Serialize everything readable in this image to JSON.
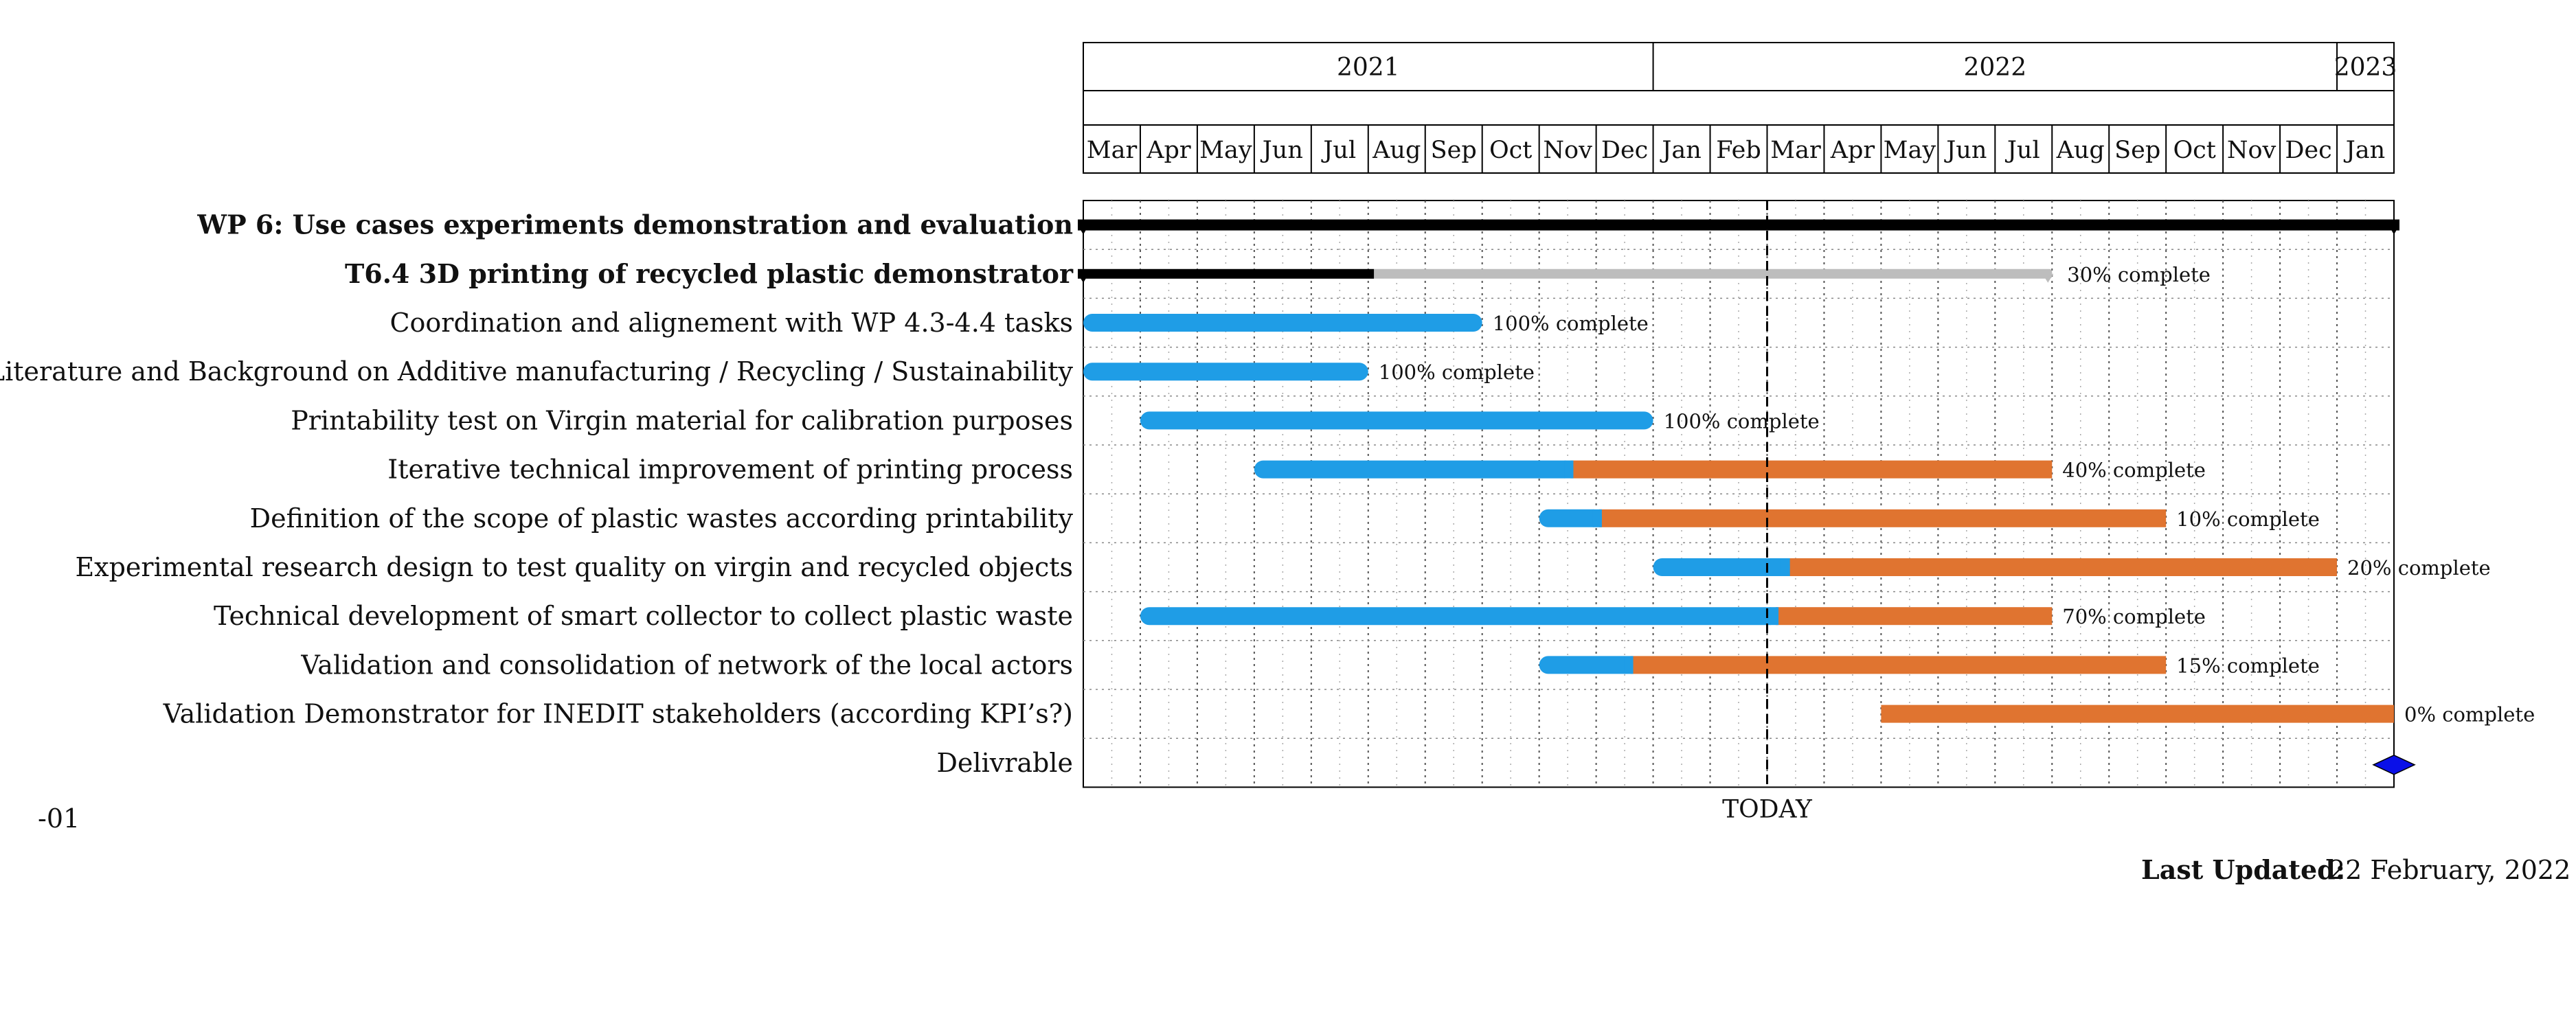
{
  "chart_data": {
    "type": "gantt",
    "years": [
      {
        "label": "2021",
        "start": "2021-03-01",
        "end": "2022-01-01"
      },
      {
        "label": "2022",
        "start": "2022-01-01",
        "end": "2023-01-01"
      },
      {
        "label": "2023",
        "start": "2023-01-01",
        "end": "2023-02-01"
      }
    ],
    "months": [
      "Mar",
      "Apr",
      "May",
      "Jun",
      "Jul",
      "Aug",
      "Sep",
      "Oct",
      "Nov",
      "Dec",
      "Jan",
      "Feb",
      "Mar",
      "Apr",
      "May",
      "Jun",
      "Jul",
      "Aug",
      "Sep",
      "Oct",
      "Nov",
      "Dec",
      "Jan"
    ],
    "axis_start": "2021-03-01",
    "axis_end": "2023-02-01",
    "today": "2022-03-01",
    "today_label": "TODAY",
    "rows": [
      {
        "label": "WP 6: Use cases experiments demonstration and evaluation",
        "kind": "wp",
        "start": "2021-03-01",
        "end": "2023-02-01",
        "color": "#999999"
      },
      {
        "label": "T6.4 3D printing of recycled plastic demonstrator",
        "kind": "task",
        "start": "2021-03-01",
        "end": "2022-08-01",
        "progress": 0.3,
        "progress_label": "30% complete",
        "color": "#1515dd"
      },
      {
        "label": "Coordination and alignement with WP 4.3-4.4 tasks",
        "kind": "bar",
        "start": "2021-03-01",
        "end": "2021-10-01",
        "progress": 1.0,
        "progress_label": "100% complete"
      },
      {
        "label": "Literature and Background on Additive manufacturing / Recycling / Sustainability",
        "kind": "bar",
        "start": "2021-03-01",
        "end": "2021-08-01",
        "progress": 1.0,
        "progress_label": "100% complete"
      },
      {
        "label": "Printability test on Virgin material for calibration purposes",
        "kind": "bar",
        "start": "2021-04-01",
        "end": "2022-01-01",
        "progress": 1.0,
        "progress_label": "100% complete"
      },
      {
        "label": "Iterative technical improvement of printing process",
        "kind": "bar",
        "start": "2021-06-01",
        "end": "2022-08-01",
        "progress": 0.4,
        "progress_label": "40% complete"
      },
      {
        "label": "Definition of the scope of plastic wastes according printability",
        "kind": "bar",
        "start": "2021-11-01",
        "end": "2022-10-01",
        "progress": 0.1,
        "progress_label": "10% complete"
      },
      {
        "label": "Experimental research design to test quality on virgin and recycled objects",
        "kind": "bar",
        "start": "2022-01-01",
        "end": "2023-01-01",
        "progress": 0.2,
        "progress_label": "20% complete"
      },
      {
        "label": "Technical development of smart collector to collect plastic waste",
        "kind": "bar",
        "start": "2021-04-01",
        "end": "2022-08-01",
        "progress": 0.7,
        "progress_label": "70% complete"
      },
      {
        "label": "Validation and consolidation of network of the local actors",
        "kind": "bar",
        "start": "2021-11-01",
        "end": "2022-10-01",
        "progress": 0.15,
        "progress_label": "15% complete"
      },
      {
        "label": "Validation Demonstrator for INEDIT stakeholders (according KPI’s?)",
        "kind": "bar",
        "start": "2022-05-01",
        "end": "2023-02-01",
        "progress": 0.0,
        "progress_label": "0% complete"
      },
      {
        "label": "Delivrable",
        "kind": "milestone",
        "date": "2023-02-01",
        "color": "#1515dd"
      }
    ],
    "colors": {
      "done": "#1f9de6",
      "remaining": "#e07430",
      "task_done": "#000000",
      "task_remaining": "#bdbdbd",
      "wp_bar": "#000000",
      "milestone": "#0a10e8",
      "grid": "#555555"
    },
    "grid": true
  },
  "footer": {
    "left_note": "-01",
    "updated_label": "Last Updated:",
    "updated_value": "22 February, 2022"
  }
}
